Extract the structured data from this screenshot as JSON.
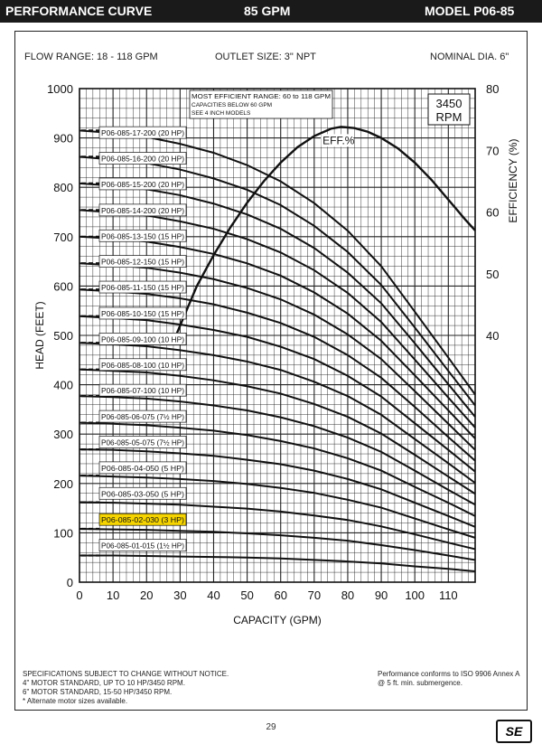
{
  "header": {
    "title": "PERFORMANCE CURVE",
    "flow": "85 GPM",
    "model": "MODEL  P06-85"
  },
  "specs": {
    "flow_range": "FLOW RANGE: 18 - 118 GPM",
    "outlet_size": "OUTLET SIZE: 3\" NPT",
    "nominal_dia": "NOMINAL DIA. 6\""
  },
  "footer": {
    "note_1": "SPECIFICATIONS SUBJECT TO CHANGE WITHOUT NOTICE.",
    "note_2": "4\" MOTOR STANDARD, UP TO 10 HP/3450 RPM.",
    "note_3": "6\" MOTOR STANDARD, 15-50 HP/3450 RPM.",
    "note_4": "* Alternate motor sizes available.",
    "iso_1": "Performance conforms to ISO 9906 Annex A",
    "iso_2": "@ 5 ft. min. submergence.",
    "page_number": "29",
    "logo": "SE"
  },
  "colors": {
    "highlight": "#f5d400",
    "curve": "#111111",
    "grid": "#222222"
  },
  "chart_data": {
    "type": "line",
    "xlabel": "CAPACITY (GPM)",
    "ylabel": "HEAD (FEET)",
    "y2label": "EFFICIENCY (%)",
    "xlim": [
      0,
      118
    ],
    "ylim": [
      0,
      1000
    ],
    "y2lim": [
      0,
      80
    ],
    "x_ticks": [
      0,
      10,
      20,
      30,
      40,
      50,
      60,
      70,
      80,
      90,
      100,
      110
    ],
    "y_ticks": [
      0,
      100,
      200,
      300,
      400,
      500,
      600,
      700,
      800,
      900,
      1000
    ],
    "y2_ticks": [
      40,
      50,
      60,
      70,
      80
    ],
    "rpm_label": "3450\nRPM",
    "annotation": {
      "line1": "MOST EFFICIENT RANGE: 60 to 118 GPM",
      "line2": "CAPACITIES BELOW 60 GPM",
      "line3": "SEE 4 INCH MODELS"
    },
    "highlighted_series": "P06-085-02-030 (3 HP)",
    "x": [
      0,
      10,
      20,
      30,
      40,
      50,
      60,
      70,
      80,
      90,
      100,
      110,
      118
    ],
    "series": [
      {
        "name": "P06-085-17-200 (20 HP)",
        "values": [
          915,
          910,
          902,
          888,
          870,
          845,
          812,
          768,
          712,
          640,
          548,
          455,
          380
        ]
      },
      {
        "name": "P06-085-16-200 (20 HP)",
        "values": [
          862,
          856,
          849,
          836,
          818,
          795,
          764,
          722,
          669,
          602,
          516,
          428,
          358
        ]
      },
      {
        "name": "P06-085-15-200 (20 HP)",
        "values": [
          808,
          803,
          796,
          784,
          767,
          745,
          716,
          677,
          627,
          565,
          484,
          401,
          335
        ]
      },
      {
        "name": "P06-085-14-200 (20 HP)",
        "values": [
          754,
          749,
          743,
          731,
          716,
          695,
          668,
          632,
          586,
          527,
          451,
          374,
          313
        ]
      },
      {
        "name": "P06-085-13-150 (15 HP)",
        "values": [
          700,
          696,
          690,
          679,
          665,
          646,
          621,
          587,
          544,
          489,
          419,
          348,
          291
        ]
      },
      {
        "name": "P06-085-12-150 (15 HP)",
        "values": [
          646,
          642,
          637,
          627,
          614,
          596,
          573,
          542,
          502,
          452,
          387,
          321,
          268
        ]
      },
      {
        "name": "P06-085-11-150 (15 HP)",
        "values": [
          593,
          589,
          584,
          575,
          563,
          546,
          525,
          497,
          460,
          414,
          355,
          294,
          246
        ]
      },
      {
        "name": "P06-085-10-150 (15 HP)",
        "values": [
          539,
          535,
          531,
          522,
          511,
          497,
          477,
          452,
          418,
          376,
          322,
          268,
          224
        ]
      },
      {
        "name": "P06-085-09-100 (10 HP)",
        "values": [
          485,
          482,
          478,
          470,
          460,
          447,
          430,
          406,
          377,
          339,
          290,
          241,
          201
        ]
      },
      {
        "name": "P06-085-08-100 (10 HP)",
        "values": [
          431,
          428,
          425,
          418,
          409,
          397,
          382,
          361,
          335,
          301,
          258,
          214,
          179
        ]
      },
      {
        "name": "P06-085-07-100 (10 HP)",
        "values": [
          377,
          375,
          372,
          366,
          358,
          348,
          334,
          316,
          293,
          264,
          226,
          187,
          157
        ]
      },
      {
        "name": "P06-085-06-075 (7½ HP)",
        "values": [
          323,
          321,
          318,
          313,
          307,
          298,
          286,
          271,
          251,
          226,
          193,
          161,
          134
        ]
      },
      {
        "name": "P06-085-05-075 (7½ HP)",
        "values": [
          269,
          268,
          265,
          261,
          256,
          248,
          239,
          226,
          209,
          188,
          161,
          134,
          112
        ]
      },
      {
        "name": "P06-085-04-050 (5 HP)",
        "values": [
          216,
          214,
          212,
          209,
          205,
          199,
          191,
          181,
          167,
          151,
          129,
          107,
          90
        ]
      },
      {
        "name": "P06-085-03-050 (5 HP)",
        "values": [
          162,
          161,
          159,
          157,
          153,
          149,
          143,
          135,
          126,
          113,
          97,
          80,
          67
        ]
      },
      {
        "name": "P06-085-02-030 (3 HP)",
        "values": [
          108,
          107,
          106,
          104,
          102,
          99,
          95,
          90,
          84,
          75,
          65,
          54,
          45
        ]
      },
      {
        "name": "P06-085-01-015 (1½ HP)",
        "values": [
          54,
          54,
          53,
          52,
          51,
          50,
          48,
          45,
          42,
          38,
          32,
          27,
          22
        ]
      }
    ],
    "efficiency": {
      "name": "EFF.%",
      "x": [
        28,
        35,
        40,
        45,
        50,
        55,
        60,
        65,
        70,
        75,
        78,
        82,
        86,
        90,
        95,
        100,
        105,
        110,
        115,
        118
      ],
      "values": [
        39,
        48,
        53,
        57.5,
        61.5,
        65,
        68,
        70.5,
        72.3,
        73.5,
        73.8,
        73.6,
        73,
        72,
        70.3,
        68,
        65.2,
        62,
        58.8,
        57
      ]
    }
  }
}
